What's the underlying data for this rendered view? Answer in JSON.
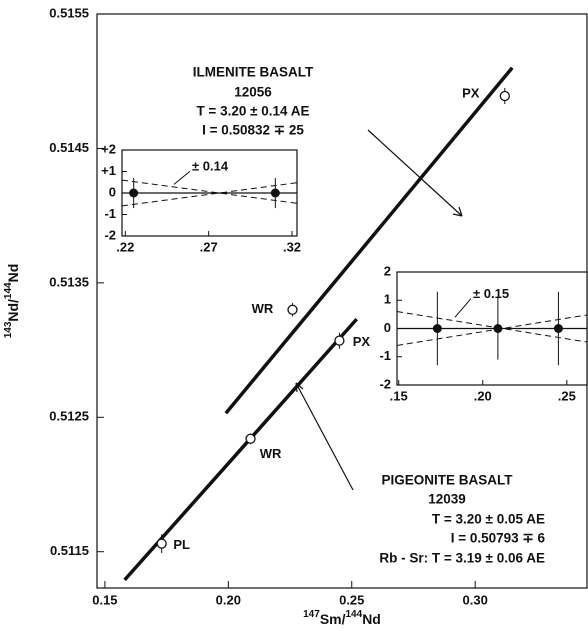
{
  "chart_data": [
    {
      "type": "isochron",
      "xlabel_parts": [
        "147",
        "Sm/",
        "144",
        "Nd"
      ],
      "ylabel_parts": [
        "143",
        "Nd/",
        "144",
        "Nd"
      ],
      "xlim": [
        0.1468,
        0.3453
      ],
      "ylim": [
        0.51123,
        0.5155
      ],
      "xticks": [
        0.15,
        {
          "value": 0.2,
          "label": "0.20"
        },
        0.25,
        {
          "value": 0.3,
          "label": "0.30"
        }
      ],
      "yticks": [
        0.5115,
        0.5125,
        0.5135,
        0.5145,
        0.5155
      ],
      "series": [
        {
          "name": "ILMENITE BASALT",
          "sample": "12056",
          "age": "T = 3.20 ± 0.14 AE",
          "initial": "I = 0.50832 ∓ 25",
          "line_x": [
            0.199,
            0.315
          ],
          "line_y": [
            0.51253,
            0.5151
          ],
          "x": [
            0.226,
            0.312
          ],
          "values": [
            0.5133,
            0.51489
          ],
          "errors": [
            5e-05,
            6e-05
          ],
          "labels": [
            "WR",
            "PX"
          ]
        },
        {
          "name": "PIGEONITE BASALT",
          "sample": "12039",
          "age": "T = 3.20 ± 0.05 AE",
          "initial": "I = 0.50793 ∓ 6",
          "rb_sr": "Rb - Sr:  T = 3.19 ± 0.06 AE",
          "line_x": [
            0.158,
            0.252
          ],
          "line_y": [
            0.51129,
            0.51323
          ],
          "x": [
            0.173,
            0.209,
            0.245
          ],
          "values": [
            0.51156,
            0.51234,
            0.51307
          ],
          "errors": [
            7e-05,
            4e-05,
            6e-05
          ],
          "labels": [
            "PL",
            "WR",
            "PX"
          ]
        }
      ]
    },
    {
      "type": "residual",
      "annotation": "± 0.14",
      "xlim": [
        0.218,
        0.323
      ],
      "ylim": [
        -2,
        2
      ],
      "xticks": [
        {
          "value": 0.22,
          "label": ".22"
        },
        {
          "value": 0.27,
          "label": ".27"
        },
        {
          "value": 0.32,
          "label": ".32"
        }
      ],
      "yticks": [
        {
          "value": 2,
          "label": "+2"
        },
        {
          "value": 1,
          "label": "+1"
        },
        0,
        -1,
        -2
      ],
      "x": [
        0.225,
        0.31
      ],
      "values": [
        0,
        0
      ],
      "errors": [
        0.7,
        0.7
      ]
    },
    {
      "type": "residual",
      "annotation": "± 0.15",
      "xlim": [
        0.149,
        0.262
      ],
      "ylim": [
        -2,
        2
      ],
      "xticks": [
        {
          "value": 0.15,
          "label": ".15"
        },
        {
          "value": 0.2,
          "label": ".20"
        },
        {
          "value": 0.25,
          "label": ".25"
        }
      ],
      "yticks": [
        2,
        1,
        0,
        -1,
        -2
      ],
      "x": [
        0.173,
        0.209,
        0.245
      ],
      "values": [
        0,
        0,
        0
      ],
      "errors": [
        1.3,
        1.1,
        1.3
      ]
    }
  ]
}
